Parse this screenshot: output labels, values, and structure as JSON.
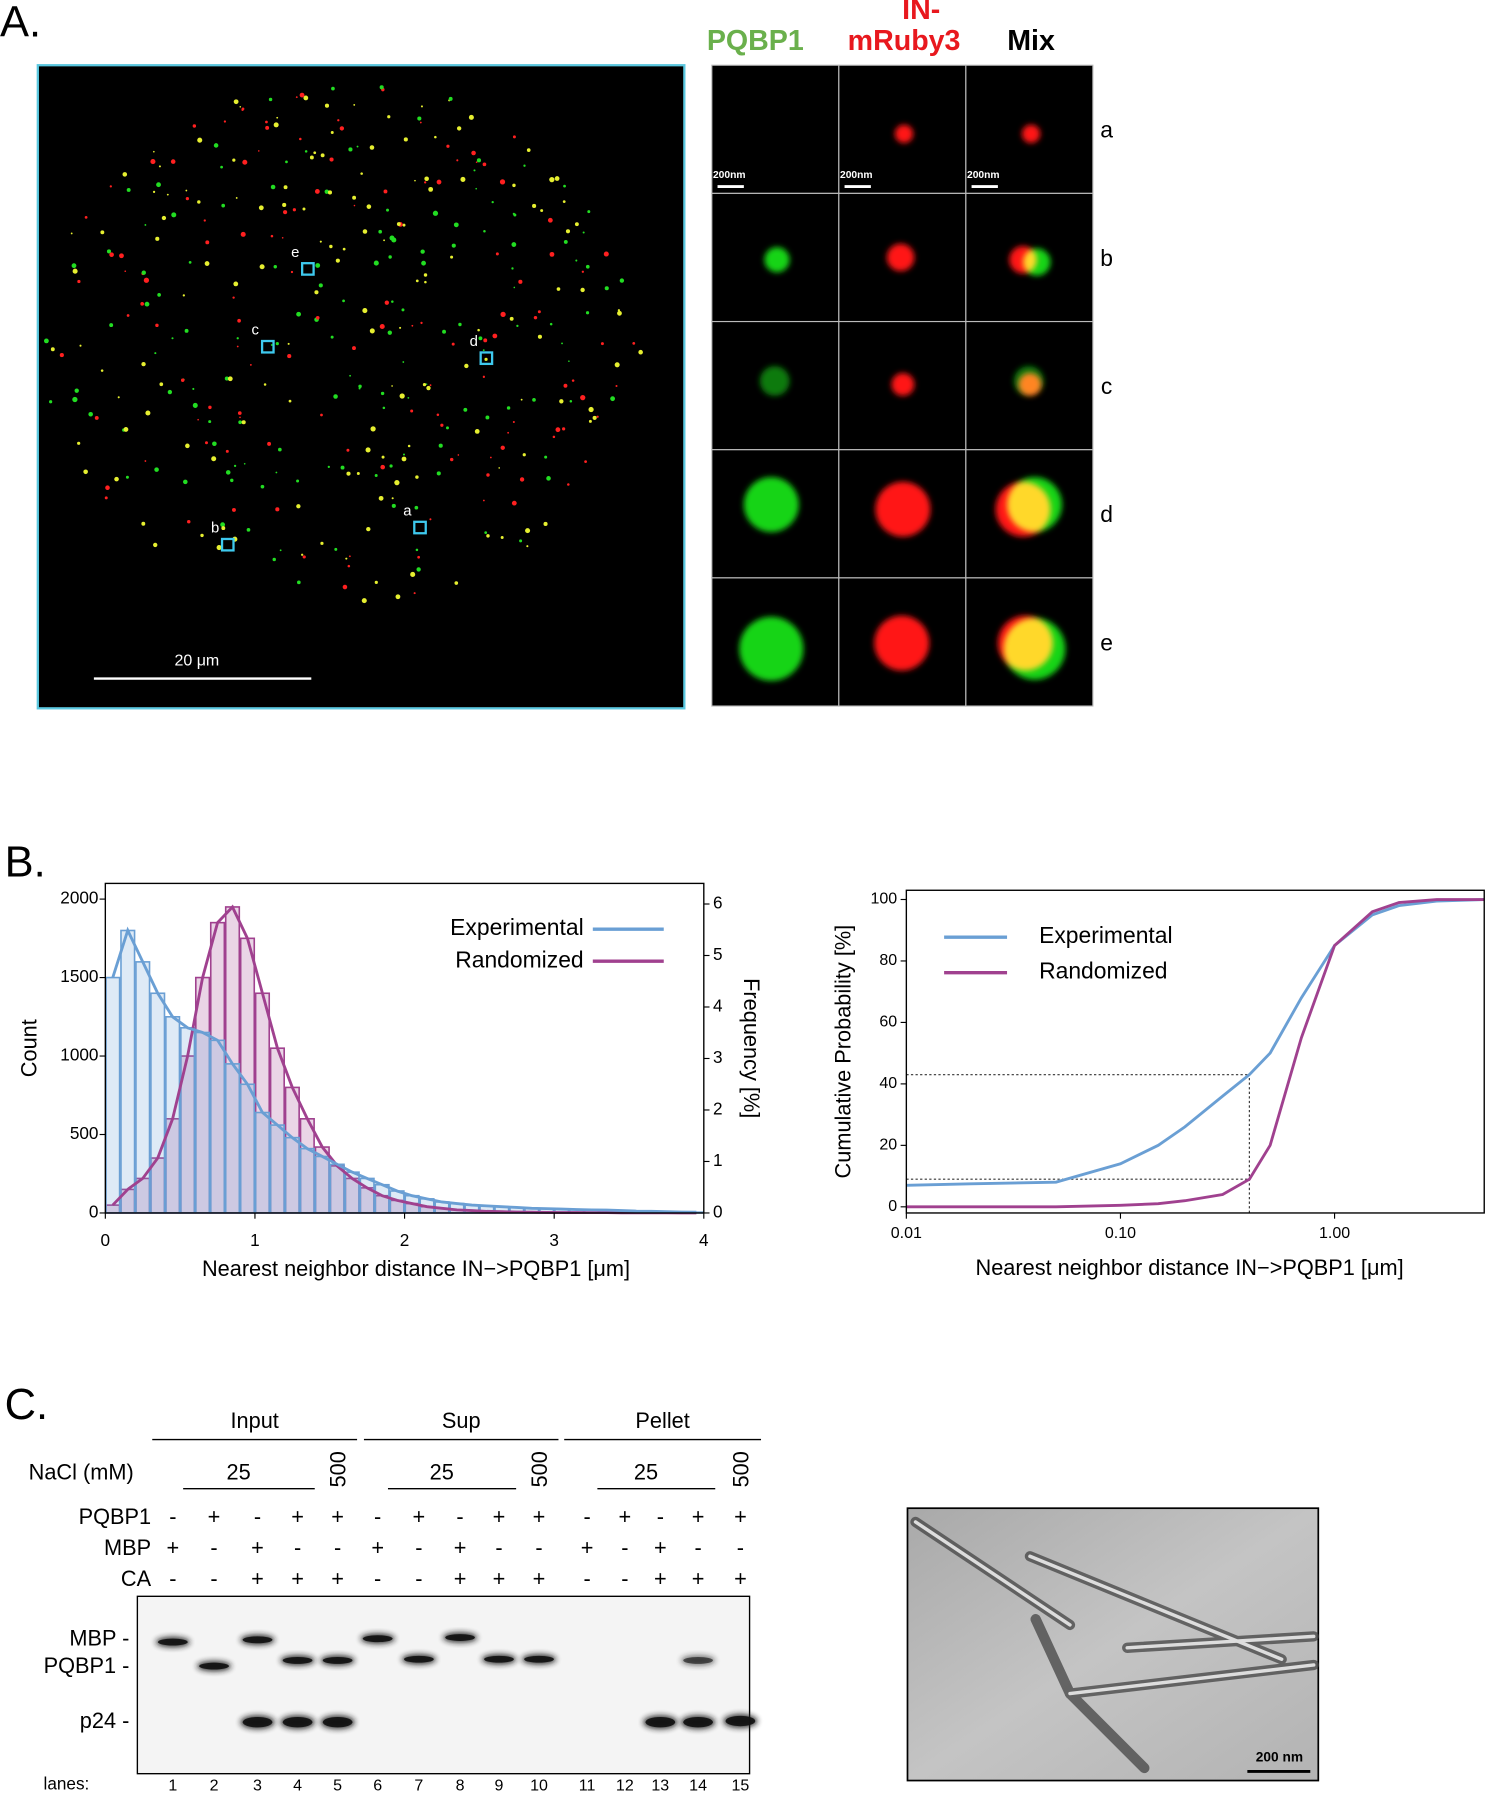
{
  "panel_a": {
    "label": "A.",
    "header_pqbp1": "PQBP1",
    "header_in": "IN-",
    "header_mruby3": "mRuby3",
    "header_mix": "Mix",
    "rows": [
      "a",
      "b",
      "c",
      "d",
      "e"
    ],
    "cell_scale_bar": "200nm",
    "overview_scale_bar": "20 μm",
    "boxes": [
      "e",
      "c",
      "d",
      "b",
      "a"
    ]
  },
  "panel_b": {
    "label": "B."
  },
  "chart_data": [
    {
      "type": "histogram",
      "x_label": "Nearest neighbor distance IN−>PQBP1 [μm]",
      "y_label": "Count",
      "y2_label": "Frequency [%]",
      "bins": [
        0,
        0.1,
        0.2,
        0.3,
        0.4,
        0.5,
        0.6,
        0.7,
        0.8,
        0.9,
        1,
        1.1,
        1.2,
        1.3,
        1.4,
        1.5,
        1.6,
        1.7,
        1.8,
        1.9,
        2,
        2.1,
        2.2,
        2.3,
        2.4,
        2.5,
        2.6,
        2.7,
        2.8,
        2.9,
        3,
        3.1,
        3.2,
        3.3,
        3.4,
        3.5,
        3.6,
        3.7,
        3.8,
        3.9,
        4
      ],
      "xlim": [
        0,
        4
      ],
      "xticks": [
        0,
        1,
        2,
        3,
        4
      ],
      "ylim": [
        0,
        2100
      ],
      "yticks": [
        0,
        500,
        1000,
        1500,
        2000
      ],
      "y2lim": [
        0,
        6.4
      ],
      "y2ticks": [
        0,
        1,
        2,
        3,
        4,
        5,
        6
      ],
      "legend": "upper right",
      "series": [
        {
          "name": "Randomized",
          "color": "#a0418f",
          "values": [
            50,
            150,
            220,
            350,
            600,
            1000,
            1500,
            1850,
            1950,
            1750,
            1400,
            1050,
            800,
            600,
            420,
            300,
            220,
            160,
            110,
            80,
            60,
            40,
            30,
            20,
            15,
            10,
            8,
            6,
            5,
            4,
            3,
            3,
            2,
            2,
            1,
            1,
            1,
            1,
            0,
            0
          ]
        },
        {
          "name": "Experimental",
          "color": "#6a9fd4",
          "values": [
            1500,
            1800,
            1600,
            1400,
            1250,
            1180,
            1150,
            1100,
            950,
            820,
            640,
            560,
            480,
            410,
            360,
            310,
            260,
            220,
            180,
            140,
            110,
            90,
            70,
            60,
            50,
            45,
            40,
            35,
            30,
            28,
            25,
            22,
            20,
            18,
            15,
            12,
            10,
            8,
            6,
            5
          ]
        }
      ]
    },
    {
      "type": "line",
      "x_label": "Nearest neighbor distance IN−>PQBP1 [μm]",
      "y_label": "Cumulative Probability [%]",
      "log_x": true,
      "xlim": [
        0.01,
        5
      ],
      "xticks": [
        0.01,
        {
          "value": 0.1,
          "label": "0.10"
        },
        {
          "value": 1,
          "label": "1.00"
        }
      ],
      "ylim": [
        -2,
        103
      ],
      "yticks": [
        0,
        20,
        40,
        60,
        80,
        100
      ],
      "legend": "upper left",
      "x": [
        0.01,
        0.02,
        0.05,
        0.1,
        0.15,
        0.2,
        0.3,
        0.4,
        0.5,
        0.7,
        1,
        1.5,
        2,
        3,
        5
      ],
      "series": [
        {
          "name": "Experimental",
          "color": "#6a9fd4",
          "values": [
            7,
            7.5,
            8,
            14,
            20,
            26,
            36,
            43,
            50,
            68,
            85,
            95,
            98,
            99.5,
            100
          ]
        },
        {
          "name": "Randomized",
          "color": "#a0418f",
          "values": [
            0,
            0,
            0,
            0.5,
            1,
            2,
            4,
            9,
            20,
            55,
            85,
            96,
            99,
            100,
            100
          ]
        }
      ],
      "reference_lines": {
        "x": 0.4,
        "y": [
          43,
          9
        ]
      }
    }
  ],
  "panel_c": {
    "label": "C.",
    "groups": [
      "Input",
      "Sup",
      "Pellet"
    ],
    "nacl_label": "NaCl (mM)",
    "low_salt": "25",
    "high_salt": "500",
    "rows": [
      {
        "name": "PQBP1",
        "signs": [
          "-",
          "+",
          "-",
          "+",
          "+",
          "-",
          "+",
          "-",
          "+",
          "+",
          "-",
          "+",
          "-",
          "+",
          "+"
        ]
      },
      {
        "name": "MBP",
        "signs": [
          "+",
          "-",
          "+",
          "-",
          "-",
          "+",
          "-",
          "+",
          "-",
          "-",
          "+",
          "-",
          "+",
          "-",
          "-"
        ]
      },
      {
        "name": "CA",
        "signs": [
          "-",
          "-",
          "+",
          "+",
          "+",
          "-",
          "-",
          "+",
          "+",
          "+",
          "-",
          "-",
          "+",
          "+",
          "+"
        ]
      }
    ],
    "band_labels": [
      "MBP -",
      "PQBP1 -",
      "p24 -"
    ],
    "lanes_label": "lanes:",
    "lanes": [
      1,
      2,
      3,
      4,
      5,
      6,
      7,
      8,
      9,
      10,
      11,
      12,
      13,
      14,
      15
    ],
    "em_scale_bar": "200 nm"
  }
}
